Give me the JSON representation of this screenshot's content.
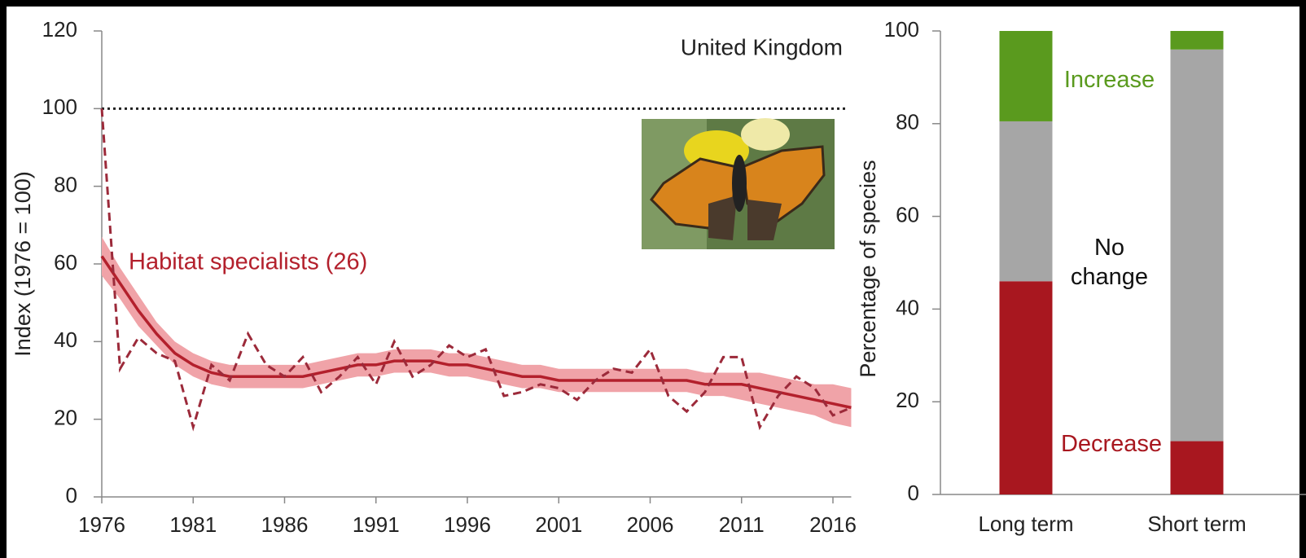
{
  "chart_data": [
    {
      "type": "line",
      "annotation": "United Kingdom",
      "y_label": "Index (1976 = 100)",
      "x": [
        1976,
        1977,
        1978,
        1979,
        1980,
        1981,
        1982,
        1983,
        1984,
        1985,
        1986,
        1987,
        1988,
        1989,
        1990,
        1991,
        1992,
        1993,
        1994,
        1995,
        1996,
        1997,
        1998,
        1999,
        2000,
        2001,
        2002,
        2003,
        2004,
        2005,
        2006,
        2007,
        2008,
        2009,
        2010,
        2011,
        2012,
        2013,
        2014,
        2015,
        2016,
        2017
      ],
      "series": [
        {
          "name": "Habitat specialists (26)",
          "color": "#9c2a3a",
          "trend_color": "#b3202c",
          "band_color": "#f0a3a8",
          "values": [
            100,
            33,
            41,
            37,
            35,
            18,
            34,
            30,
            42,
            34,
            31,
            36,
            27,
            31,
            36,
            29,
            40,
            31,
            34,
            39,
            36,
            38,
            26,
            27,
            29,
            28,
            25,
            30,
            33,
            32,
            38,
            26,
            22,
            27,
            36,
            36,
            18,
            26,
            31,
            28,
            21,
            23
          ],
          "trend": [
            62,
            55,
            48,
            42,
            37,
            34,
            32,
            31,
            31,
            31,
            31,
            31,
            32,
            33,
            34,
            34,
            35,
            35,
            35,
            34,
            34,
            33,
            32,
            31,
            31,
            30,
            30,
            30,
            30,
            30,
            30,
            30,
            30,
            29,
            29,
            29,
            28,
            27,
            26,
            25,
            24,
            23
          ],
          "trend_lower": [
            57,
            51,
            44,
            39,
            34,
            31,
            29,
            28,
            28,
            28,
            28,
            28,
            29,
            30,
            31,
            31,
            32,
            32,
            32,
            31,
            31,
            30,
            29,
            28,
            28,
            27,
            27,
            27,
            27,
            27,
            27,
            27,
            27,
            26,
            26,
            25,
            24,
            23,
            22,
            21,
            19,
            18
          ],
          "trend_upper": [
            67,
            59,
            52,
            45,
            40,
            37,
            35,
            34,
            34,
            34,
            34,
            34,
            35,
            36,
            37,
            37,
            38,
            38,
            38,
            37,
            37,
            36,
            35,
            34,
            34,
            33,
            33,
            33,
            33,
            33,
            33,
            33,
            33,
            32,
            32,
            32,
            32,
            31,
            30,
            29,
            29,
            28
          ]
        }
      ],
      "reference_line": 100,
      "xlim": [
        1976,
        2017
      ],
      "xticks": [
        1976,
        1981,
        1986,
        1991,
        1996,
        2001,
        2006,
        2011,
        2016
      ],
      "ylim": [
        0,
        120
      ],
      "yticks": [
        0,
        20,
        40,
        60,
        80,
        100,
        120
      ]
    },
    {
      "type": "bar",
      "stacked": true,
      "y_label": "Percentage of species",
      "categories": [
        "Long term",
        "Short term"
      ],
      "series": [
        {
          "name": "Decrease",
          "color": "#a8171f",
          "values": [
            46,
            11.5
          ]
        },
        {
          "name": "No change",
          "color": "#a6a6a6",
          "values": [
            34.5,
            84.5
          ]
        },
        {
          "name": "Increase",
          "color": "#5a9a1e",
          "values": [
            19.5,
            4
          ]
        }
      ],
      "ylim": [
        0,
        100
      ],
      "yticks": [
        0,
        20,
        40,
        60,
        80,
        100
      ]
    }
  ]
}
